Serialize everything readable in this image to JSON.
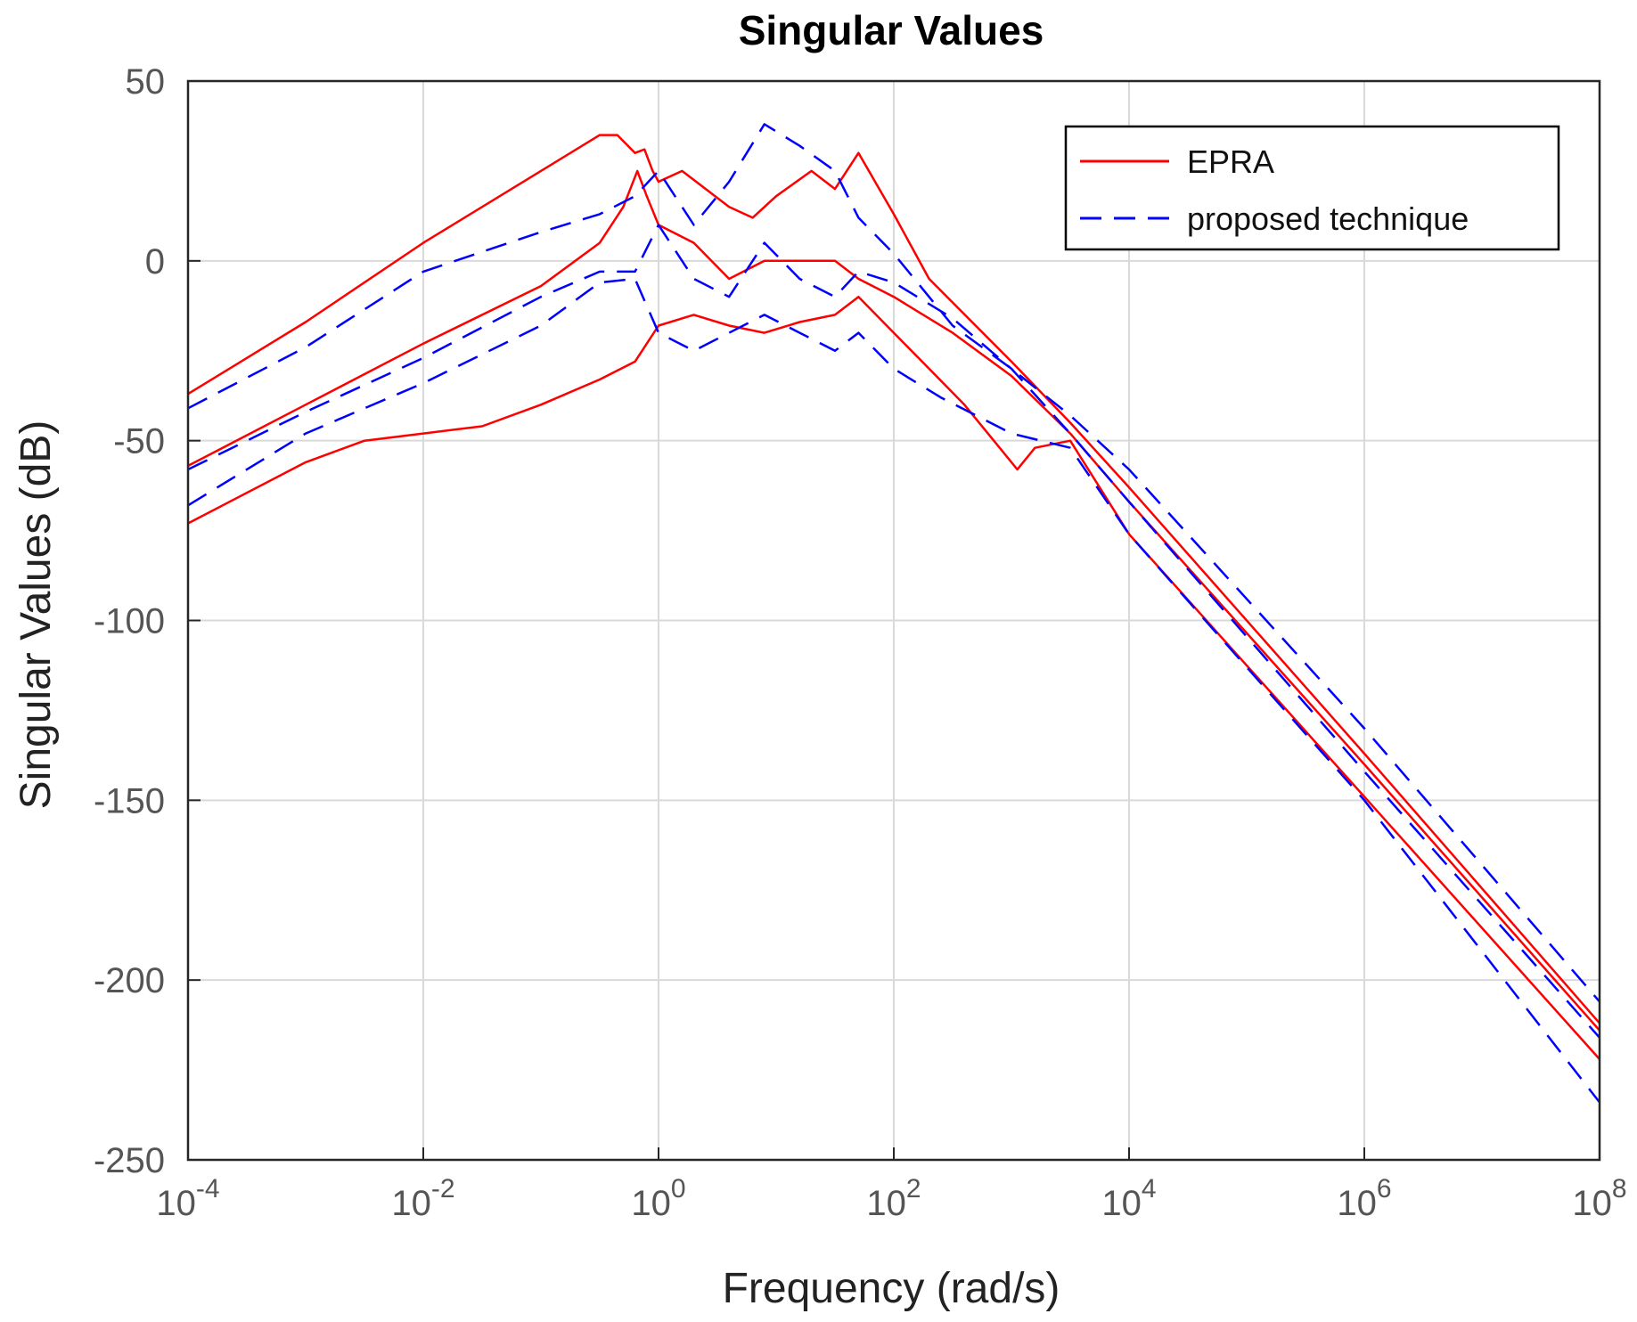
{
  "chart_data": {
    "type": "line",
    "title": "Singular Values",
    "xlabel": "Frequency (rad/s)",
    "ylabel": "Singular Values (dB)",
    "xscale": "log",
    "xlim_exp": [
      -4,
      8
    ],
    "ylim": [
      -250,
      50
    ],
    "grid": true,
    "legend_position": "top-right",
    "x_tick_base": "10",
    "x_tick_exponents": [
      "-4",
      "-2",
      "0",
      "2",
      "4",
      "6",
      "8"
    ],
    "y_ticks": [
      "50",
      "0",
      "-50",
      "-100",
      "-150",
      "-200",
      "-250"
    ],
    "series": [
      {
        "name": "EPRA",
        "color": "#ff0000",
        "style": "solid",
        "curves": [
          [
            [
              -4,
              -37
            ],
            [
              -3,
              -17
            ],
            [
              -2,
              5
            ],
            [
              -1,
              25
            ],
            [
              -0.5,
              35
            ],
            [
              -0.35,
              35
            ],
            [
              -0.2,
              30
            ],
            [
              -0.12,
              31
            ],
            [
              -0.05,
              25
            ],
            [
              0,
              22
            ],
            [
              0.2,
              25
            ],
            [
              0.6,
              15
            ],
            [
              0.8,
              12
            ],
            [
              1,
              18
            ],
            [
              1.3,
              25
            ],
            [
              1.5,
              20
            ],
            [
              1.7,
              30
            ],
            [
              2,
              13
            ],
            [
              2.3,
              -5
            ],
            [
              3,
              -28
            ],
            [
              3.5,
              -45
            ],
            [
              4,
              -63
            ],
            [
              6,
              -137
            ],
            [
              8,
              -212
            ]
          ],
          [
            [
              -4,
              -57
            ],
            [
              -3,
              -40
            ],
            [
              -2,
              -23
            ],
            [
              -1,
              -7
            ],
            [
              -0.5,
              5
            ],
            [
              -0.3,
              15
            ],
            [
              -0.18,
              25
            ],
            [
              -0.1,
              18
            ],
            [
              0,
              10
            ],
            [
              0.3,
              5
            ],
            [
              0.6,
              -5
            ],
            [
              0.9,
              0
            ],
            [
              1.2,
              0
            ],
            [
              1.5,
              0
            ],
            [
              1.7,
              -5
            ],
            [
              2,
              -10
            ],
            [
              2.5,
              -20
            ],
            [
              3,
              -32
            ],
            [
              3.5,
              -48
            ],
            [
              4,
              -67
            ],
            [
              6,
              -140
            ],
            [
              8,
              -214
            ]
          ],
          [
            [
              -4,
              -73
            ],
            [
              -3,
              -56
            ],
            [
              -2.5,
              -50
            ],
            [
              -2,
              -48
            ],
            [
              -1.5,
              -46
            ],
            [
              -1,
              -40
            ],
            [
              -0.5,
              -33
            ],
            [
              -0.2,
              -28
            ],
            [
              0,
              -18
            ],
            [
              0.3,
              -15
            ],
            [
              0.6,
              -18
            ],
            [
              0.9,
              -20
            ],
            [
              1.2,
              -17
            ],
            [
              1.5,
              -15
            ],
            [
              1.7,
              -10
            ],
            [
              2,
              -20
            ],
            [
              2.3,
              -30
            ],
            [
              2.6,
              -40
            ],
            [
              2.9,
              -52
            ],
            [
              3.05,
              -58
            ],
            [
              3.2,
              -52
            ],
            [
              3.5,
              -50
            ],
            [
              4,
              -76
            ],
            [
              6,
              -149
            ],
            [
              8,
              -222
            ]
          ]
        ]
      },
      {
        "name": "proposed technique",
        "color": "#0000ff",
        "style": "dashed",
        "curves": [
          [
            [
              -4,
              -41
            ],
            [
              -3,
              -24
            ],
            [
              -2,
              -3
            ],
            [
              -1,
              8
            ],
            [
              -0.5,
              13
            ],
            [
              -0.2,
              18
            ],
            [
              0,
              25
            ],
            [
              0.3,
              10
            ],
            [
              0.6,
              22
            ],
            [
              0.9,
              38
            ],
            [
              1.2,
              32
            ],
            [
              1.5,
              25
            ],
            [
              1.7,
              12
            ],
            [
              2,
              2
            ],
            [
              2.5,
              -18
            ],
            [
              3,
              -30
            ],
            [
              3.5,
              -43
            ],
            [
              4,
              -58
            ],
            [
              6,
              -130
            ],
            [
              8,
              -206
            ]
          ],
          [
            [
              -4,
              -58
            ],
            [
              -3,
              -42
            ],
            [
              -2,
              -27
            ],
            [
              -1,
              -10
            ],
            [
              -0.5,
              -3
            ],
            [
              -0.2,
              -3
            ],
            [
              0,
              10
            ],
            [
              0.3,
              -5
            ],
            [
              0.6,
              -10
            ],
            [
              0.9,
              5
            ],
            [
              1.2,
              -5
            ],
            [
              1.5,
              -10
            ],
            [
              1.7,
              -3
            ],
            [
              2,
              -6
            ],
            [
              2.5,
              -16
            ],
            [
              3,
              -30
            ],
            [
              3.5,
              -48
            ],
            [
              4,
              -67
            ],
            [
              6,
              -142
            ],
            [
              8,
              -216
            ]
          ],
          [
            [
              -4,
              -68
            ],
            [
              -3,
              -48
            ],
            [
              -2,
              -34
            ],
            [
              -1,
              -18
            ],
            [
              -0.5,
              -6
            ],
            [
              -0.2,
              -5
            ],
            [
              0,
              -20
            ],
            [
              0.3,
              -25
            ],
            [
              0.6,
              -20
            ],
            [
              0.9,
              -15
            ],
            [
              1.2,
              -20
            ],
            [
              1.5,
              -25
            ],
            [
              1.7,
              -20
            ],
            [
              2,
              -30
            ],
            [
              2.4,
              -38
            ],
            [
              3,
              -48
            ],
            [
              3.5,
              -52
            ],
            [
              4,
              -76
            ],
            [
              6,
              -150
            ],
            [
              8,
              -234
            ]
          ]
        ]
      }
    ]
  }
}
